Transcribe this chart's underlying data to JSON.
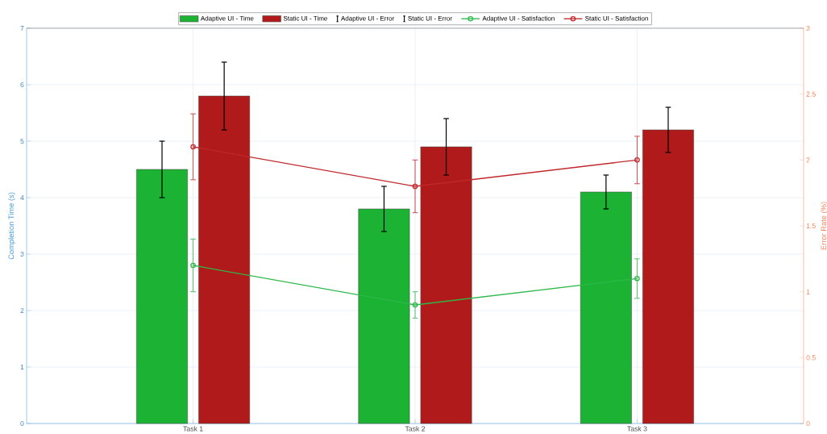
{
  "chart_data": {
    "type": "bar",
    "categories": [
      "Task 1",
      "Task 2",
      "Task 3"
    ],
    "ylabel": "Completion Time (s)",
    "y2label": "Error Rate (%)",
    "ylim": [
      0,
      7
    ],
    "yticks": [
      0,
      1,
      2,
      3,
      4,
      5,
      6,
      7
    ],
    "y2lim": [
      0,
      3
    ],
    "y2ticks": [
      0,
      0.5,
      1,
      1.5,
      2,
      2.5,
      3
    ],
    "grid": true,
    "legend": "top",
    "series": [
      {
        "name": "Adaptive UI - Time",
        "color": "#1cb234",
        "values": [
          4.5,
          3.8,
          4.1
        ],
        "errors": [
          0.5,
          0.4,
          0.3
        ]
      },
      {
        "name": "Static UI - Time",
        "color": "#b01a1a",
        "values": [
          5.8,
          4.9,
          5.2
        ],
        "errors": [
          0.6,
          0.5,
          0.4
        ]
      },
      {
        "name": "Adaptive UI - Error",
        "type": "scatter",
        "color": "#000000",
        "values": [
          null,
          null,
          null
        ]
      },
      {
        "name": "Static UI - Error",
        "type": "scatter",
        "color": "#000000",
        "values": [
          null,
          null,
          null
        ]
      },
      {
        "name": "Adaptive UI - Satisfaction",
        "type": "line",
        "axis": "y2",
        "marker": "circle",
        "color": "#2db84a",
        "values": [
          1.2,
          0.9,
          1.1
        ],
        "errors": [
          0.2,
          0.1,
          0.15
        ]
      },
      {
        "name": "Static UI - Satisfaction",
        "type": "line",
        "axis": "y2",
        "marker": "circle",
        "color": "#c0282c",
        "values": [
          2.1,
          1.8,
          2.0
        ],
        "errors": [
          0.25,
          0.2,
          0.18
        ]
      }
    ]
  }
}
